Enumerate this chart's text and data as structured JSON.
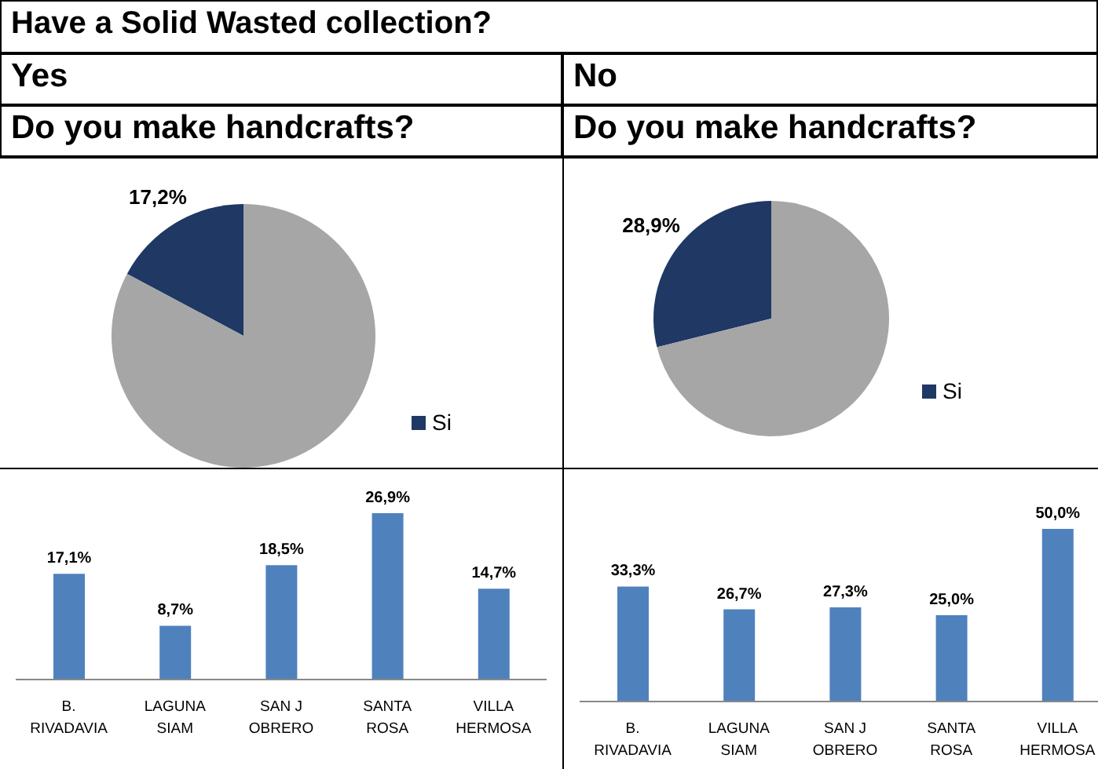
{
  "chart_data": [
    {
      "type": "pie",
      "title": "Yes",
      "subtitle": "Do you make handcrafts?",
      "annotations": [
        "Have a Solid Wasted collection?"
      ],
      "categories": [
        "Si",
        null
      ],
      "values": [
        17.2,
        82.8
      ],
      "colors": [
        "#1f3864",
        "#a6a6a6"
      ],
      "value_labels": [
        "17,2%",
        null
      ],
      "legend": "right"
    },
    {
      "type": "pie",
      "title": "No",
      "subtitle": "Do you make handcrafts?",
      "categories": [
        "Si",
        null
      ],
      "values": [
        28.9,
        71.1
      ],
      "colors": [
        "#1f3864",
        "#a6a6a6"
      ],
      "value_labels": [
        "28,9%",
        null
      ],
      "legend": "right"
    },
    {
      "type": "bar",
      "categories": [
        "B. RIVADAVIA",
        "LAGUNA SIAM",
        "SAN J OBRERO",
        "SANTA ROSA",
        "VILLA HERMOSA"
      ],
      "values": [
        17.1,
        8.7,
        18.5,
        26.9,
        14.7
      ],
      "value_labels": [
        "17,1%",
        "8,7%",
        "18,5%",
        "26,9%",
        "14,7%"
      ],
      "color": "#4f81bd"
    },
    {
      "type": "bar",
      "categories": [
        "B. RIVADAVIA",
        "LAGUNA SIAM",
        "SAN J OBRERO",
        "SANTA ROSA",
        "VILLA HERMOSA"
      ],
      "values": [
        33.3,
        26.7,
        27.3,
        25.0,
        50.0
      ],
      "value_labels": [
        "33,3%",
        "26,7%",
        "27,3%",
        "25,0%",
        "50,0%"
      ],
      "color": "#4f81bd"
    }
  ]
}
